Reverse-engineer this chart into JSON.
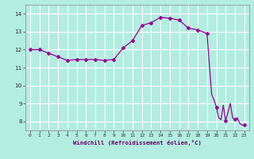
{
  "x_data": [
    0,
    1,
    2,
    3,
    4,
    5,
    6,
    7,
    8,
    9,
    10,
    11,
    12,
    13,
    14,
    15,
    16,
    17,
    18,
    19,
    19.25,
    19.5,
    19.75,
    20.0,
    20.25,
    20.5,
    20.75,
    21.0,
    21.25,
    21.5,
    21.75,
    22.0,
    22.25,
    22.5,
    22.75,
    23.0
  ],
  "y_data": [
    12.0,
    12.0,
    11.8,
    11.6,
    11.4,
    11.45,
    11.45,
    11.45,
    11.4,
    11.45,
    12.1,
    12.5,
    13.35,
    13.5,
    13.8,
    13.75,
    13.65,
    13.2,
    13.1,
    12.9,
    11.2,
    9.5,
    9.2,
    8.8,
    8.2,
    8.1,
    8.9,
    8.05,
    8.5,
    9.0,
    8.2,
    8.1,
    8.2,
    7.9,
    7.8,
    7.8
  ],
  "marker_x": [
    0,
    1,
    2,
    3,
    4,
    5,
    6,
    7,
    8,
    9,
    10,
    11,
    12,
    13,
    14,
    15,
    16,
    17,
    18,
    19,
    20,
    21,
    22,
    23
  ],
  "marker_y": [
    12.0,
    12.0,
    11.8,
    11.6,
    11.4,
    11.45,
    11.45,
    11.45,
    11.4,
    11.45,
    12.1,
    12.5,
    13.35,
    13.5,
    13.8,
    13.75,
    13.65,
    13.2,
    13.1,
    12.9,
    8.8,
    8.05,
    8.1,
    7.8
  ],
  "xlabel": "Windchill (Refroidissement éolien,°C)",
  "xlim": [
    -0.5,
    23.5
  ],
  "ylim": [
    7.5,
    14.5
  ],
  "yticks": [
    8,
    9,
    10,
    11,
    12,
    13,
    14
  ],
  "xticks": [
    0,
    1,
    2,
    3,
    4,
    5,
    6,
    7,
    8,
    9,
    10,
    11,
    12,
    13,
    14,
    15,
    16,
    17,
    18,
    19,
    20,
    21,
    22,
    23
  ],
  "line_color": "#990099",
  "marker_color": "#990099",
  "bg_color": "#b2ede0",
  "grid_color": "#ffffff"
}
